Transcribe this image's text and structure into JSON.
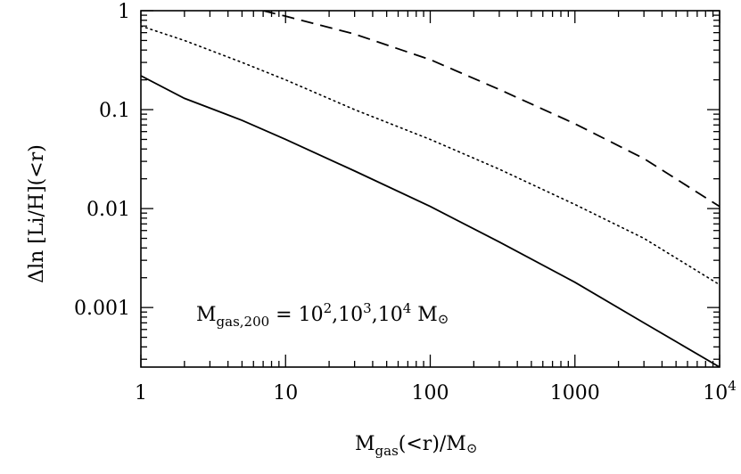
{
  "chart_data": {
    "type": "line",
    "xscale": "log",
    "yscale": "log",
    "xlim": [
      1,
      10000
    ],
    "ylim": [
      0.00025,
      1
    ],
    "xlabel": {
      "main": "M",
      "sub": "gas",
      "rest": "(<r)/M",
      "sym": "⊙"
    },
    "ylabel": "Δln [Li/H](<r)",
    "x_ticks": [
      {
        "value": 1,
        "label": "1"
      },
      {
        "value": 10,
        "label": "10"
      },
      {
        "value": 100,
        "label": "100"
      },
      {
        "value": 1000,
        "label": "1000"
      },
      {
        "value": 10000,
        "label": "10",
        "sup": "4"
      }
    ],
    "y_ticks": [
      {
        "value": 1,
        "label": "1"
      },
      {
        "value": 0.1,
        "label": "0.1"
      },
      {
        "value": 0.01,
        "label": "0.01"
      },
      {
        "value": 0.001,
        "label": "0.001"
      }
    ],
    "annotation": {
      "main": "M",
      "sub": "gas,200",
      "eq": " = ",
      "v1": "10",
      "s1": "2",
      "c1": ",",
      "v2": "10",
      "s2": "3",
      "c2": ",",
      "v3": "10",
      "s3": "4",
      "unit": " M",
      "sym": "⊙"
    },
    "series": [
      {
        "style": "solid",
        "x": [
          1,
          2,
          5,
          10,
          30,
          100,
          300,
          1000,
          3000,
          10000
        ],
        "y": [
          0.22,
          0.13,
          0.078,
          0.05,
          0.024,
          0.0105,
          0.0046,
          0.0018,
          0.0007,
          0.00025
        ]
      },
      {
        "style": "dotted",
        "x": [
          1,
          2,
          5,
          10,
          30,
          100,
          300,
          1000,
          3000,
          10000
        ],
        "y": [
          0.7,
          0.5,
          0.3,
          0.2,
          0.1,
          0.05,
          0.025,
          0.011,
          0.005,
          0.0017
        ]
      },
      {
        "style": "dashed",
        "x": [
          7,
          10,
          30,
          100,
          300,
          1000,
          3000,
          10000
        ],
        "y": [
          1,
          0.88,
          0.58,
          0.32,
          0.16,
          0.072,
          0.032,
          0.0105
        ]
      }
    ],
    "grid": false,
    "colors": {
      "line": "#000000",
      "background": "#ffffff"
    }
  }
}
